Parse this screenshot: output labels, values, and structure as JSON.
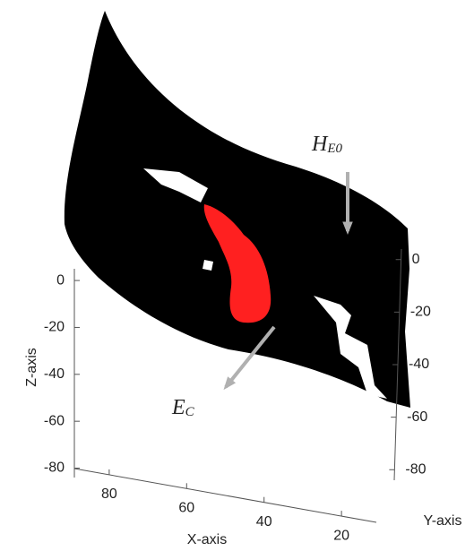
{
  "chart_data": {
    "type": "pointcloud3d",
    "xlabel": "X-axis",
    "ylabel": "Y-axis",
    "zlabel": "Z-axis",
    "xlim": [
      89,
      11
    ],
    "xticks": [
      80,
      60,
      40,
      20
    ],
    "ylim": [
      4,
      -84
    ],
    "yticks": [
      0,
      -20,
      -40,
      -60,
      -80
    ],
    "zlim": [
      5,
      -84
    ],
    "zticks": [
      0,
      -20,
      -40,
      -60,
      -80
    ],
    "cloud_color": "#000000",
    "region_color": "#ff2020",
    "arrow_color": "#b0b0b0",
    "annotations": [
      {
        "text": "H",
        "subscript": "E0"
      },
      {
        "text": "E",
        "subscript": "C"
      }
    ]
  }
}
